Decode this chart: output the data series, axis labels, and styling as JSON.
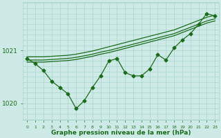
{
  "x": [
    0,
    1,
    2,
    3,
    4,
    5,
    6,
    7,
    8,
    9,
    10,
    11,
    12,
    13,
    14,
    15,
    16,
    17,
    18,
    19,
    20,
    21,
    22,
    23
  ],
  "y_main": [
    1020.85,
    1020.75,
    1020.62,
    1020.42,
    1020.3,
    1020.18,
    1019.9,
    1020.05,
    1020.3,
    1020.52,
    1020.8,
    1020.85,
    1020.58,
    1020.52,
    1020.52,
    1020.65,
    1020.92,
    1020.82,
    1021.05,
    1021.2,
    1021.32,
    1021.5,
    1021.7,
    1021.65
  ],
  "y_upper1": [
    1020.82,
    1020.82,
    1020.82,
    1020.83,
    1020.84,
    1020.85,
    1020.87,
    1020.9,
    1020.93,
    1020.97,
    1021.0,
    1021.04,
    1021.08,
    1021.12,
    1021.16,
    1021.2,
    1021.24,
    1021.28,
    1021.32,
    1021.38,
    1021.44,
    1021.5,
    1021.56,
    1021.6
  ],
  "y_upper2": [
    1020.88,
    1020.88,
    1020.88,
    1020.89,
    1020.9,
    1020.91,
    1020.93,
    1020.96,
    1020.99,
    1021.03,
    1021.07,
    1021.11,
    1021.15,
    1021.19,
    1021.23,
    1021.27,
    1021.31,
    1021.35,
    1021.39,
    1021.45,
    1021.51,
    1021.57,
    1021.63,
    1021.67
  ],
  "y_upper3": [
    1020.78,
    1020.78,
    1020.78,
    1020.79,
    1020.8,
    1020.81,
    1020.83,
    1020.86,
    1020.89,
    1020.93,
    1020.96,
    1021.0,
    1021.04,
    1021.08,
    1021.12,
    1021.16,
    1021.2,
    1021.24,
    1021.28,
    1021.34,
    1021.4,
    1021.46,
    1021.52,
    1021.56
  ],
  "line_color": "#1a6b1a",
  "background_color": "#ceeae7",
  "grid_color": "#aad4d0",
  "ylabel_color": "#1a6b1a",
  "xlabel": "Graphe pression niveau de la mer (hPa)",
  "yticks": [
    1020,
    1021
  ],
  "ylim": [
    1019.68,
    1021.92
  ],
  "xlim": [
    -0.5,
    23.5
  ],
  "xtick_labels": [
    "0",
    "1",
    "2",
    "3",
    "4",
    "5",
    "6",
    "7",
    "8",
    "9",
    "10",
    "11",
    "12",
    "13",
    "14",
    "15",
    "16",
    "17",
    "18",
    "19",
    "20",
    "21",
    "22",
    "23"
  ],
  "marker": "D",
  "marker_size": 2.5,
  "line_width": 0.9
}
